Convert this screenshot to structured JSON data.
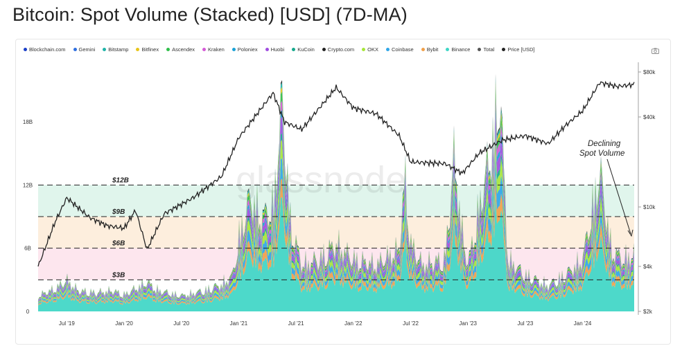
{
  "title": "Bitcoin: Spot Volume (Stacked) [USD] (7D-MA)",
  "watermark": "glassnode",
  "legend": [
    {
      "name": "Blockchain.com",
      "color": "#1a3fc8"
    },
    {
      "name": "Gemini",
      "color": "#2f6fe0"
    },
    {
      "name": "Bitstamp",
      "color": "#1fb3a8"
    },
    {
      "name": "Bitfinex",
      "color": "#e8c51a"
    },
    {
      "name": "Ascendex",
      "color": "#2fbf4a"
    },
    {
      "name": "Kraken",
      "color": "#d45ad6"
    },
    {
      "name": "Poloniex",
      "color": "#1aa1d6"
    },
    {
      "name": "Huobi",
      "color": "#a04de0"
    },
    {
      "name": "KuCoin",
      "color": "#17a88c"
    },
    {
      "name": "Crypto.com",
      "color": "#222222"
    },
    {
      "name": "OKX",
      "color": "#a6e63a"
    },
    {
      "name": "Coinbase",
      "color": "#2fa6e8"
    },
    {
      "name": "Bybit",
      "color": "#f0a04a"
    },
    {
      "name": "Binance",
      "color": "#3ed6c6"
    },
    {
      "name": "Total",
      "color": "#555555"
    },
    {
      "name": "Price [USD]",
      "color": "#222222"
    }
  ],
  "chart_data": {
    "type": "area",
    "stacked": true,
    "x_ticks": [
      "Jul '19",
      "Jan '20",
      "Jul '20",
      "Jan '21",
      "Jul '21",
      "Jan '22",
      "Jul '22",
      "Jan '23",
      "Jul '23",
      "Jan '24"
    ],
    "y_left_ticks": [
      "0",
      "6B",
      "12B",
      "18B"
    ],
    "y_right_ticks": [
      "$2k",
      "$4k",
      "$10k",
      "$40k",
      "$80k"
    ],
    "y_right_scale": "log",
    "bands": [
      {
        "label": "$3B",
        "from": 0,
        "to": 3,
        "color": "#ffffff"
      },
      {
        "label": "$6B",
        "from": 3,
        "to": 6,
        "color": "#fde6ee"
      },
      {
        "label": "$9B",
        "from": 6,
        "to": 9,
        "color": "#fdeedd"
      },
      {
        "label": "$12B",
        "from": 9,
        "to": 12,
        "color": "#e0f5ec"
      }
    ],
    "annotation": "Declining\nSpot Volume",
    "series_total_b": [
      [
        2019.25,
        1.5
      ],
      [
        2019.4,
        2.2
      ],
      [
        2019.5,
        3.0
      ],
      [
        2019.6,
        2.0
      ],
      [
        2019.75,
        1.8
      ],
      [
        2019.9,
        2.0
      ],
      [
        2020.0,
        1.6
      ],
      [
        2020.2,
        2.8
      ],
      [
        2020.3,
        2.0
      ],
      [
        2020.5,
        1.5
      ],
      [
        2020.7,
        2.0
      ],
      [
        2020.85,
        2.6
      ],
      [
        2020.95,
        3.5
      ],
      [
        2021.0,
        7.0
      ],
      [
        2021.1,
        11.0
      ],
      [
        2021.2,
        9.0
      ],
      [
        2021.3,
        10.0
      ],
      [
        2021.38,
        20.5
      ],
      [
        2021.45,
        8.5
      ],
      [
        2021.55,
        4.5
      ],
      [
        2021.7,
        5.0
      ],
      [
        2021.85,
        6.5
      ],
      [
        2022.0,
        5.0
      ],
      [
        2022.2,
        4.5
      ],
      [
        2022.4,
        6.0
      ],
      [
        2022.45,
        13.0
      ],
      [
        2022.5,
        6.5
      ],
      [
        2022.6,
        4.5
      ],
      [
        2022.8,
        5.0
      ],
      [
        2022.88,
        15.0
      ],
      [
        2022.95,
        7.5
      ],
      [
        2023.0,
        4.5
      ],
      [
        2023.2,
        15.5
      ],
      [
        2023.28,
        21.0
      ],
      [
        2023.35,
        5.0
      ],
      [
        2023.5,
        3.5
      ],
      [
        2023.7,
        2.5
      ],
      [
        2023.85,
        3.5
      ],
      [
        2024.0,
        5.0
      ],
      [
        2024.15,
        13.5
      ],
      [
        2024.25,
        6.0
      ],
      [
        2024.35,
        5.0
      ],
      [
        2024.45,
        5.5
      ]
    ],
    "price_usd": [
      [
        2019.25,
        4000
      ],
      [
        2019.4,
        8000
      ],
      [
        2019.5,
        11500
      ],
      [
        2019.7,
        8500
      ],
      [
        2019.85,
        7500
      ],
      [
        2020.0,
        7200
      ],
      [
        2020.1,
        9500
      ],
      [
        2020.2,
        5200
      ],
      [
        2020.35,
        9000
      ],
      [
        2020.6,
        11500
      ],
      [
        2020.85,
        16000
      ],
      [
        2021.0,
        29000
      ],
      [
        2021.3,
        58000
      ],
      [
        2021.4,
        37000
      ],
      [
        2021.55,
        33000
      ],
      [
        2021.85,
        63000
      ],
      [
        2022.0,
        46000
      ],
      [
        2022.2,
        42000
      ],
      [
        2022.4,
        30000
      ],
      [
        2022.5,
        20000
      ],
      [
        2022.8,
        19500
      ],
      [
        2022.95,
        16800
      ],
      [
        2023.1,
        23000
      ],
      [
        2023.3,
        28000
      ],
      [
        2023.5,
        30000
      ],
      [
        2023.7,
        26500
      ],
      [
        2023.85,
        35000
      ],
      [
        2024.0,
        44000
      ],
      [
        2024.15,
        68000
      ],
      [
        2024.3,
        64000
      ],
      [
        2024.45,
        66000
      ]
    ]
  }
}
